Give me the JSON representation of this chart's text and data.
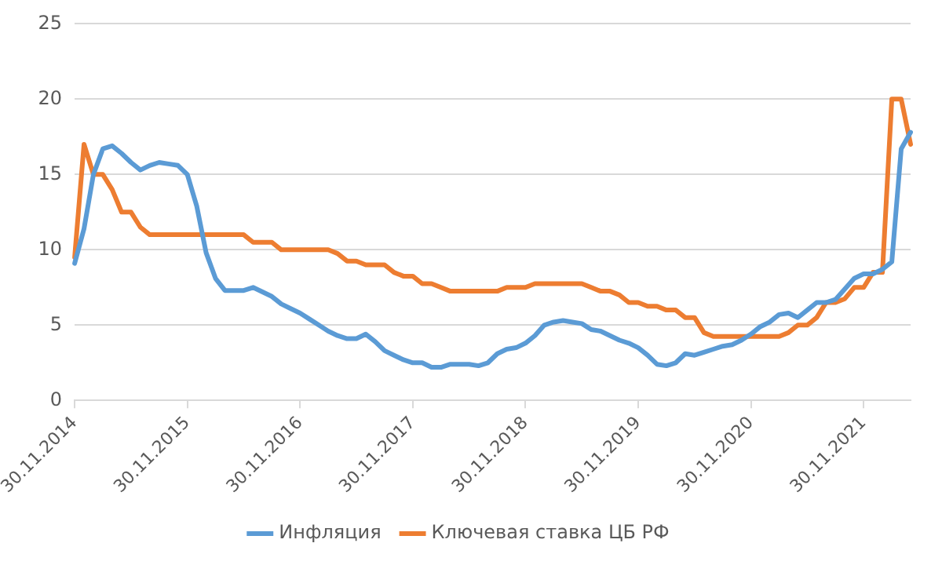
{
  "chart_data": {
    "type": "line",
    "categories": [
      "30.11.2014",
      null,
      null,
      null,
      null,
      null,
      null,
      null,
      null,
      null,
      null,
      null,
      "30.11.2015",
      null,
      null,
      null,
      null,
      null,
      null,
      null,
      null,
      null,
      null,
      null,
      "30.11.2016",
      null,
      null,
      null,
      null,
      null,
      null,
      null,
      null,
      null,
      null,
      null,
      "30.11.2017",
      null,
      null,
      null,
      null,
      null,
      null,
      null,
      null,
      null,
      null,
      null,
      "30.11.2018",
      null,
      null,
      null,
      null,
      null,
      null,
      null,
      null,
      null,
      null,
      null,
      "30.11.2019",
      null,
      null,
      null,
      null,
      null,
      null,
      null,
      null,
      null,
      null,
      null,
      "30.11.2020",
      null,
      null,
      null,
      null,
      null,
      null,
      null,
      null,
      null,
      null,
      null,
      "30.11.2021",
      null,
      null,
      null,
      null,
      null
    ],
    "series": [
      {
        "name": "Инфляция",
        "color": "#5b9bd5",
        "values": [
          9.1,
          11.4,
          15.0,
          16.7,
          16.9,
          16.4,
          15.8,
          15.3,
          15.6,
          15.8,
          15.7,
          15.6,
          15.0,
          12.9,
          9.8,
          8.1,
          7.3,
          7.3,
          7.3,
          7.5,
          7.2,
          6.9,
          6.4,
          6.1,
          5.8,
          5.4,
          5.0,
          4.6,
          4.3,
          4.1,
          4.1,
          4.4,
          3.9,
          3.3,
          3.0,
          2.7,
          2.5,
          2.5,
          2.2,
          2.2,
          2.4,
          2.4,
          2.4,
          2.3,
          2.5,
          3.1,
          3.4,
          3.5,
          3.8,
          4.3,
          5.0,
          5.2,
          5.3,
          5.2,
          5.1,
          4.7,
          4.6,
          4.3,
          4.0,
          3.8,
          3.5,
          3.0,
          2.4,
          2.3,
          2.5,
          3.1,
          3.0,
          3.2,
          3.4,
          3.6,
          3.7,
          4.0,
          4.4,
          4.9,
          5.2,
          5.7,
          5.8,
          5.5,
          6.0,
          6.5,
          6.5,
          6.7,
          7.4,
          8.1,
          8.4,
          8.4,
          8.7,
          9.2,
          16.7,
          17.8
        ]
      },
      {
        "name": "Ключевая ставка ЦБ РФ",
        "color": "#ed7d31",
        "values": [
          9.5,
          17,
          15,
          15,
          14,
          12.5,
          12.5,
          11.5,
          11,
          11,
          11,
          11,
          11,
          11,
          11,
          11,
          11,
          11,
          11,
          10.5,
          10.5,
          10.5,
          10,
          10,
          10,
          10,
          10,
          10,
          9.75,
          9.25,
          9.25,
          9,
          9,
          9,
          8.5,
          8.25,
          8.25,
          7.75,
          7.75,
          7.5,
          7.25,
          7.25,
          7.25,
          7.25,
          7.25,
          7.25,
          7.5,
          7.5,
          7.5,
          7.75,
          7.75,
          7.75,
          7.75,
          7.75,
          7.75,
          7.5,
          7.25,
          7.25,
          7,
          6.5,
          6.5,
          6.25,
          6.25,
          6,
          6,
          5.5,
          5.5,
          4.5,
          4.25,
          4.25,
          4.25,
          4.25,
          4.25,
          4.25,
          4.25,
          4.25,
          4.5,
          5,
          5,
          5.5,
          6.5,
          6.5,
          6.75,
          7.5,
          7.5,
          8.5,
          8.5,
          20,
          20,
          17
        ]
      }
    ],
    "ylim": [
      0,
      25
    ],
    "yticks": [
      0,
      5,
      10,
      15,
      20,
      25
    ],
    "grid": "y",
    "legend": "bottom",
    "marker": "none",
    "line_style": "solid"
  }
}
